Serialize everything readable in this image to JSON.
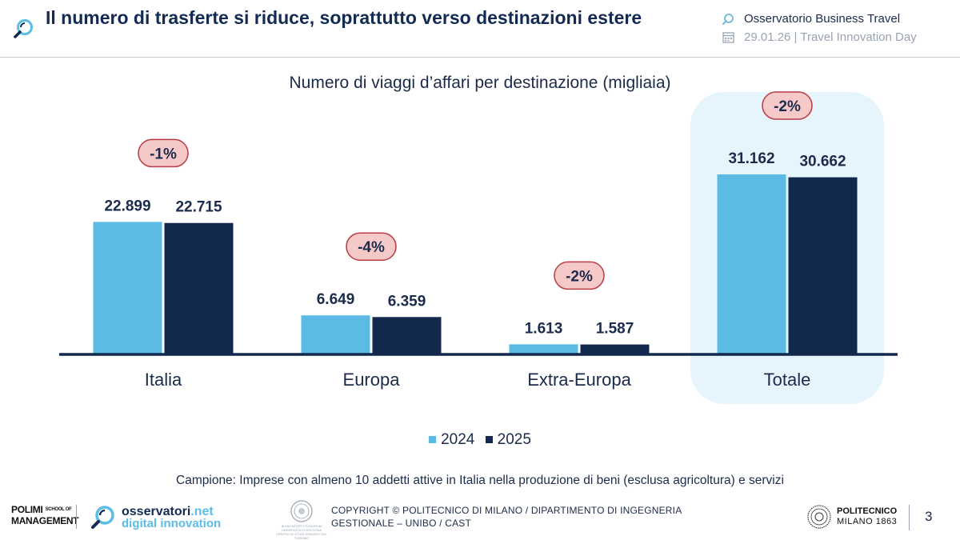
{
  "header": {
    "title": "Il numero di trasferte si riduce, soprattutto verso destinazioni estere",
    "observatory": "Osservatorio Business Travel",
    "date_event": "29.01.26 | Travel Innovation Day"
  },
  "colors": {
    "series_2024": "#5bbbe4",
    "series_2025": "#12294d",
    "badge_fill": "#f6c9c9",
    "badge_border": "#b93b44",
    "highlight": "#e6f5fc",
    "text": "#1b2b4b"
  },
  "chart_data": {
    "type": "bar",
    "title": "Numero di viaggi d’affari per destinazione (migliaia)",
    "categories": [
      "Italia",
      "Europa",
      "Extra-Europa",
      "Totale"
    ],
    "series": [
      {
        "name": "2024",
        "values": [
          22899,
          6649,
          1613,
          31162
        ],
        "labels": [
          "22.899",
          "6.649",
          "1.613",
          "31.162"
        ]
      },
      {
        "name": "2025",
        "values": [
          22715,
          6359,
          1587,
          30662
        ],
        "labels": [
          "22.715",
          "6.359",
          "1.587",
          "30.662"
        ]
      }
    ],
    "changes": [
      "-1%",
      "-4%",
      "-2%",
      "-2%"
    ],
    "highlighted_category": "Totale",
    "xlabel": "",
    "ylabel": "",
    "ylim": [
      0,
      34000
    ],
    "grid": false,
    "legend": "bottom"
  },
  "note": "Campione: Imprese con almeno 10 addetti attive in Italia nella produzione di beni (esclusa agricoltura) e servizi",
  "footer": {
    "polimi_line1": "POLIMI",
    "polimi_school": "SCHOOL OF",
    "polimi_line2": "MANAGEMENT",
    "osservatori_name": "osservatori",
    "osservatori_tld": ".net",
    "osservatori_tagline": "digital innovation",
    "unibo_line1": "ALMA MATER STUDIORUM",
    "unibo_line2": "UNIVERSITÀ DI BOLOGNA",
    "unibo_line3": "CENTRO DI STUDI AVANZATI SUL TURISMO",
    "copyright_line1": "COPYRIGHT © POLITECNICO DI MILANO / DIPARTIMENTO DI INGEGNERIA",
    "copyright_line2": "GESTIONALE – UNIBO / CAST",
    "politecnico_line1": "POLITECNICO",
    "politecnico_line2": "MILANO 1863",
    "page_number": "3"
  }
}
